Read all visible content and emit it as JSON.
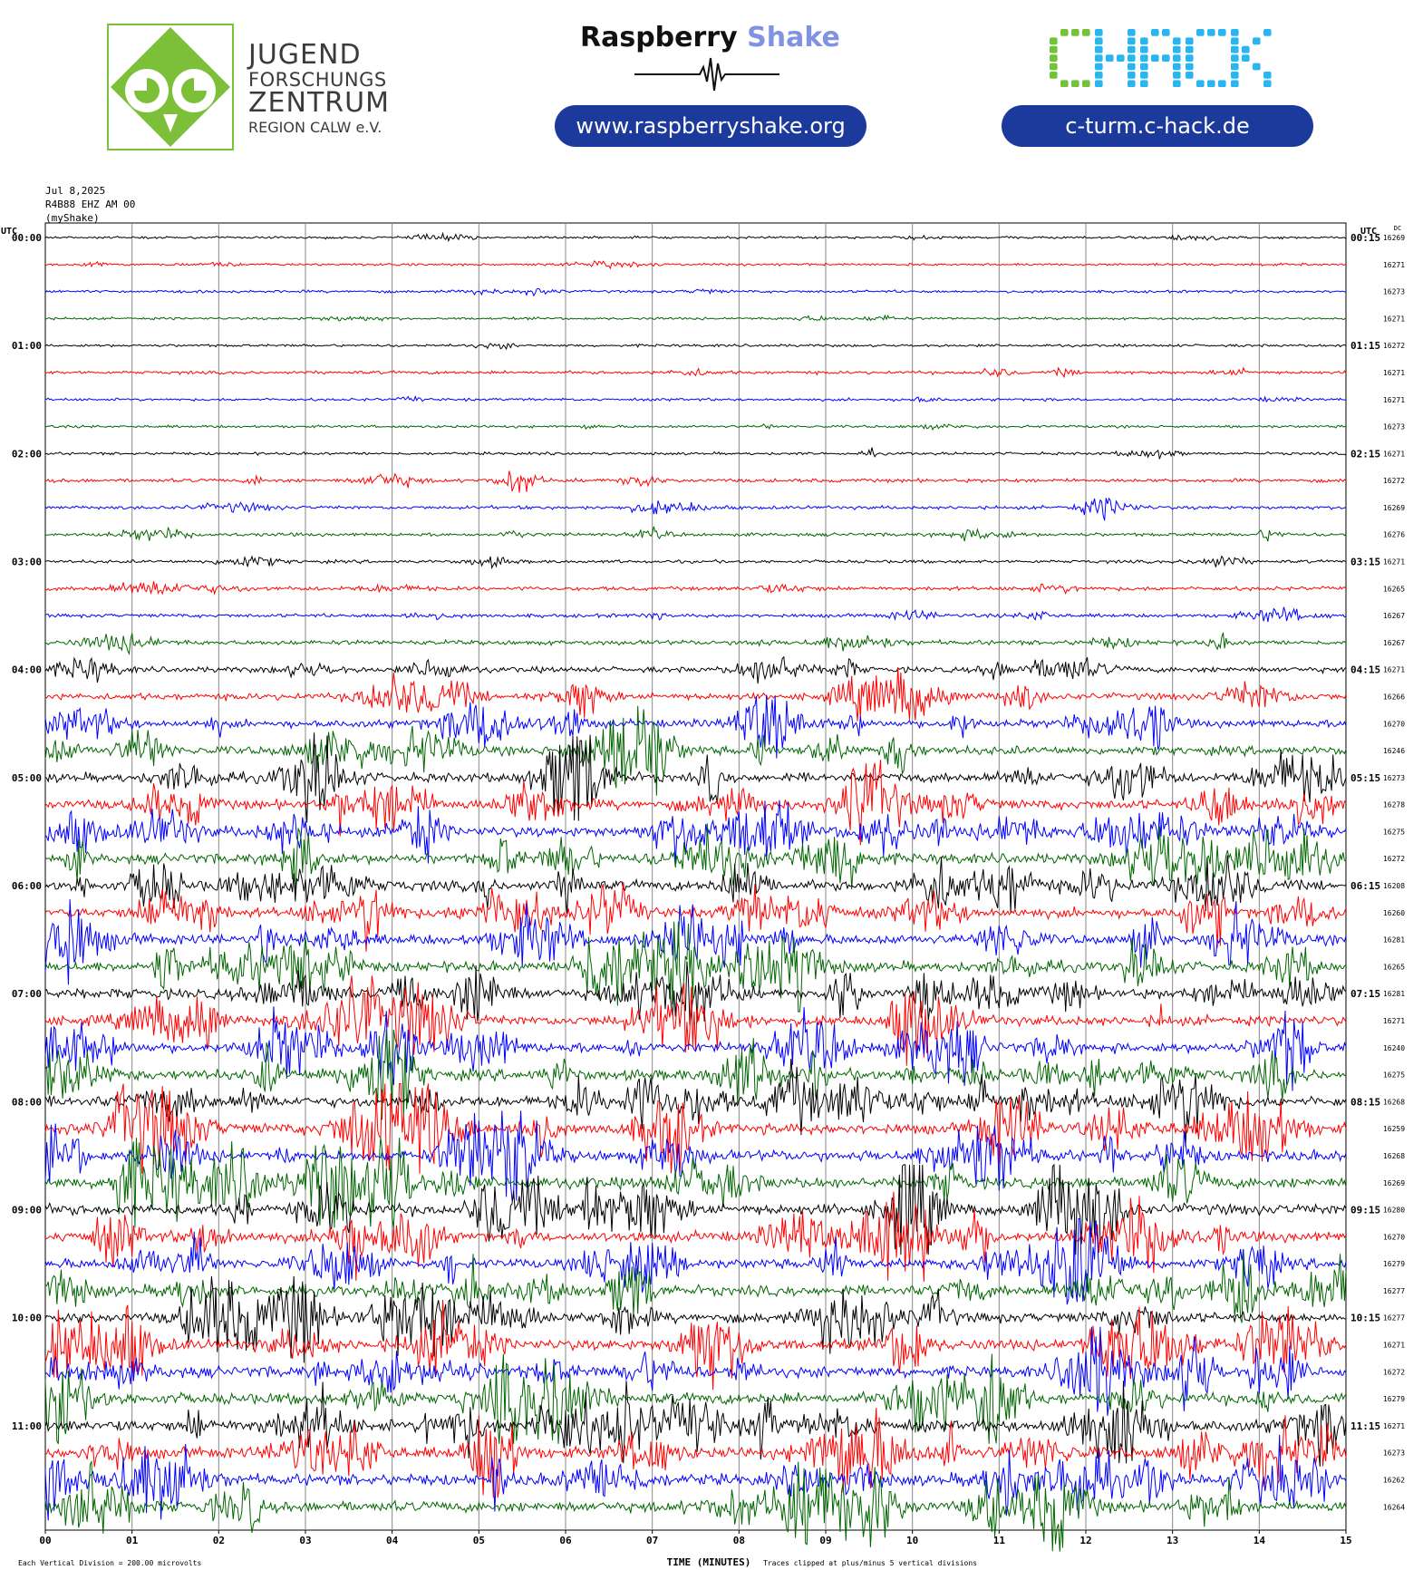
{
  "header": {
    "jfz_logo": {
      "lines": [
        "JUGEND",
        "FORSCHUNGS",
        "ZENTRUM",
        "REGION CALW e.V."
      ],
      "color": "#7cbf38"
    },
    "rs_logo": {
      "word1": "Raspberry",
      "word2": "Shake",
      "url": "www.raspberryshake.org"
    },
    "chack_logo": {
      "text_c": "C",
      "text_rest": "HACK",
      "url": "c-turm.c-hack.de",
      "color_c": "#72c23a",
      "color_rest": "#29b6f0"
    }
  },
  "meta": {
    "date": "Jul 8,2025",
    "station": "R4B88 EHZ AM 00",
    "source": "(myShake)"
  },
  "chart_data": {
    "type": "line",
    "title": "Jul 8,2025",
    "xlabel": "TIME (MINUTES)",
    "ylabel": "UTC",
    "right_label": "UTC",
    "dc_label": "DC",
    "x_ticks": [
      "00",
      "01",
      "02",
      "03",
      "04",
      "05",
      "06",
      "07",
      "08",
      "09",
      "10",
      "11",
      "12",
      "13",
      "14",
      "15"
    ],
    "xlim": [
      0,
      15
    ],
    "rows_per_hour": 4,
    "left_hour_labels": [
      "00:00",
      "01:00",
      "02:00",
      "03:00",
      "04:00",
      "05:00",
      "06:00",
      "07:00",
      "08:00",
      "09:00",
      "10:00",
      "11:00"
    ],
    "right_hour_labels": [
      "00:15",
      "01:15",
      "02:15",
      "03:15",
      "04:15",
      "05:15",
      "06:15",
      "07:15",
      "08:15",
      "09:15",
      "10:15",
      "11:15"
    ],
    "dc_offsets": [
      16269,
      16271,
      16273,
      16271,
      16272,
      16271,
      16271,
      16273,
      16271,
      16272,
      16269,
      16276,
      16271,
      16265,
      16267,
      16267,
      16271,
      16266,
      16270,
      16246,
      16273,
      16278,
      16275,
      16272,
      16208,
      16260,
      16281,
      16265,
      16281,
      16271,
      16240,
      16275,
      16268,
      16259,
      16268,
      16269,
      16280,
      16270,
      16279,
      16277,
      16277,
      16271,
      16272,
      16279,
      16271,
      16273,
      16262,
      16264
    ],
    "trace_colors": [
      "#000000",
      "#ff0000",
      "#0000ff",
      "#006600"
    ],
    "activity": [
      0.3,
      0.3,
      0.4,
      0.3,
      0.4,
      0.6,
      0.4,
      0.4,
      0.4,
      0.8,
      0.7,
      0.7,
      0.6,
      0.9,
      0.8,
      1.2,
      1.6,
      2.0,
      2.4,
      2.8,
      3.0,
      3.2,
      3.4,
      3.4,
      3.4,
      3.2,
      3.3,
      3.4,
      3.3,
      3.2,
      3.3,
      3.6,
      3.6,
      3.6,
      3.6,
      3.7,
      3.7,
      3.4,
      3.3,
      3.4,
      3.4,
      3.6,
      3.8,
      3.8,
      4.0,
      3.8,
      3.8,
      3.6
    ],
    "footer_left": "Each Vertical Division =  200.00 microvolts",
    "footer_right": "Traces clipped at plus/minus 5 vertical divisions"
  }
}
